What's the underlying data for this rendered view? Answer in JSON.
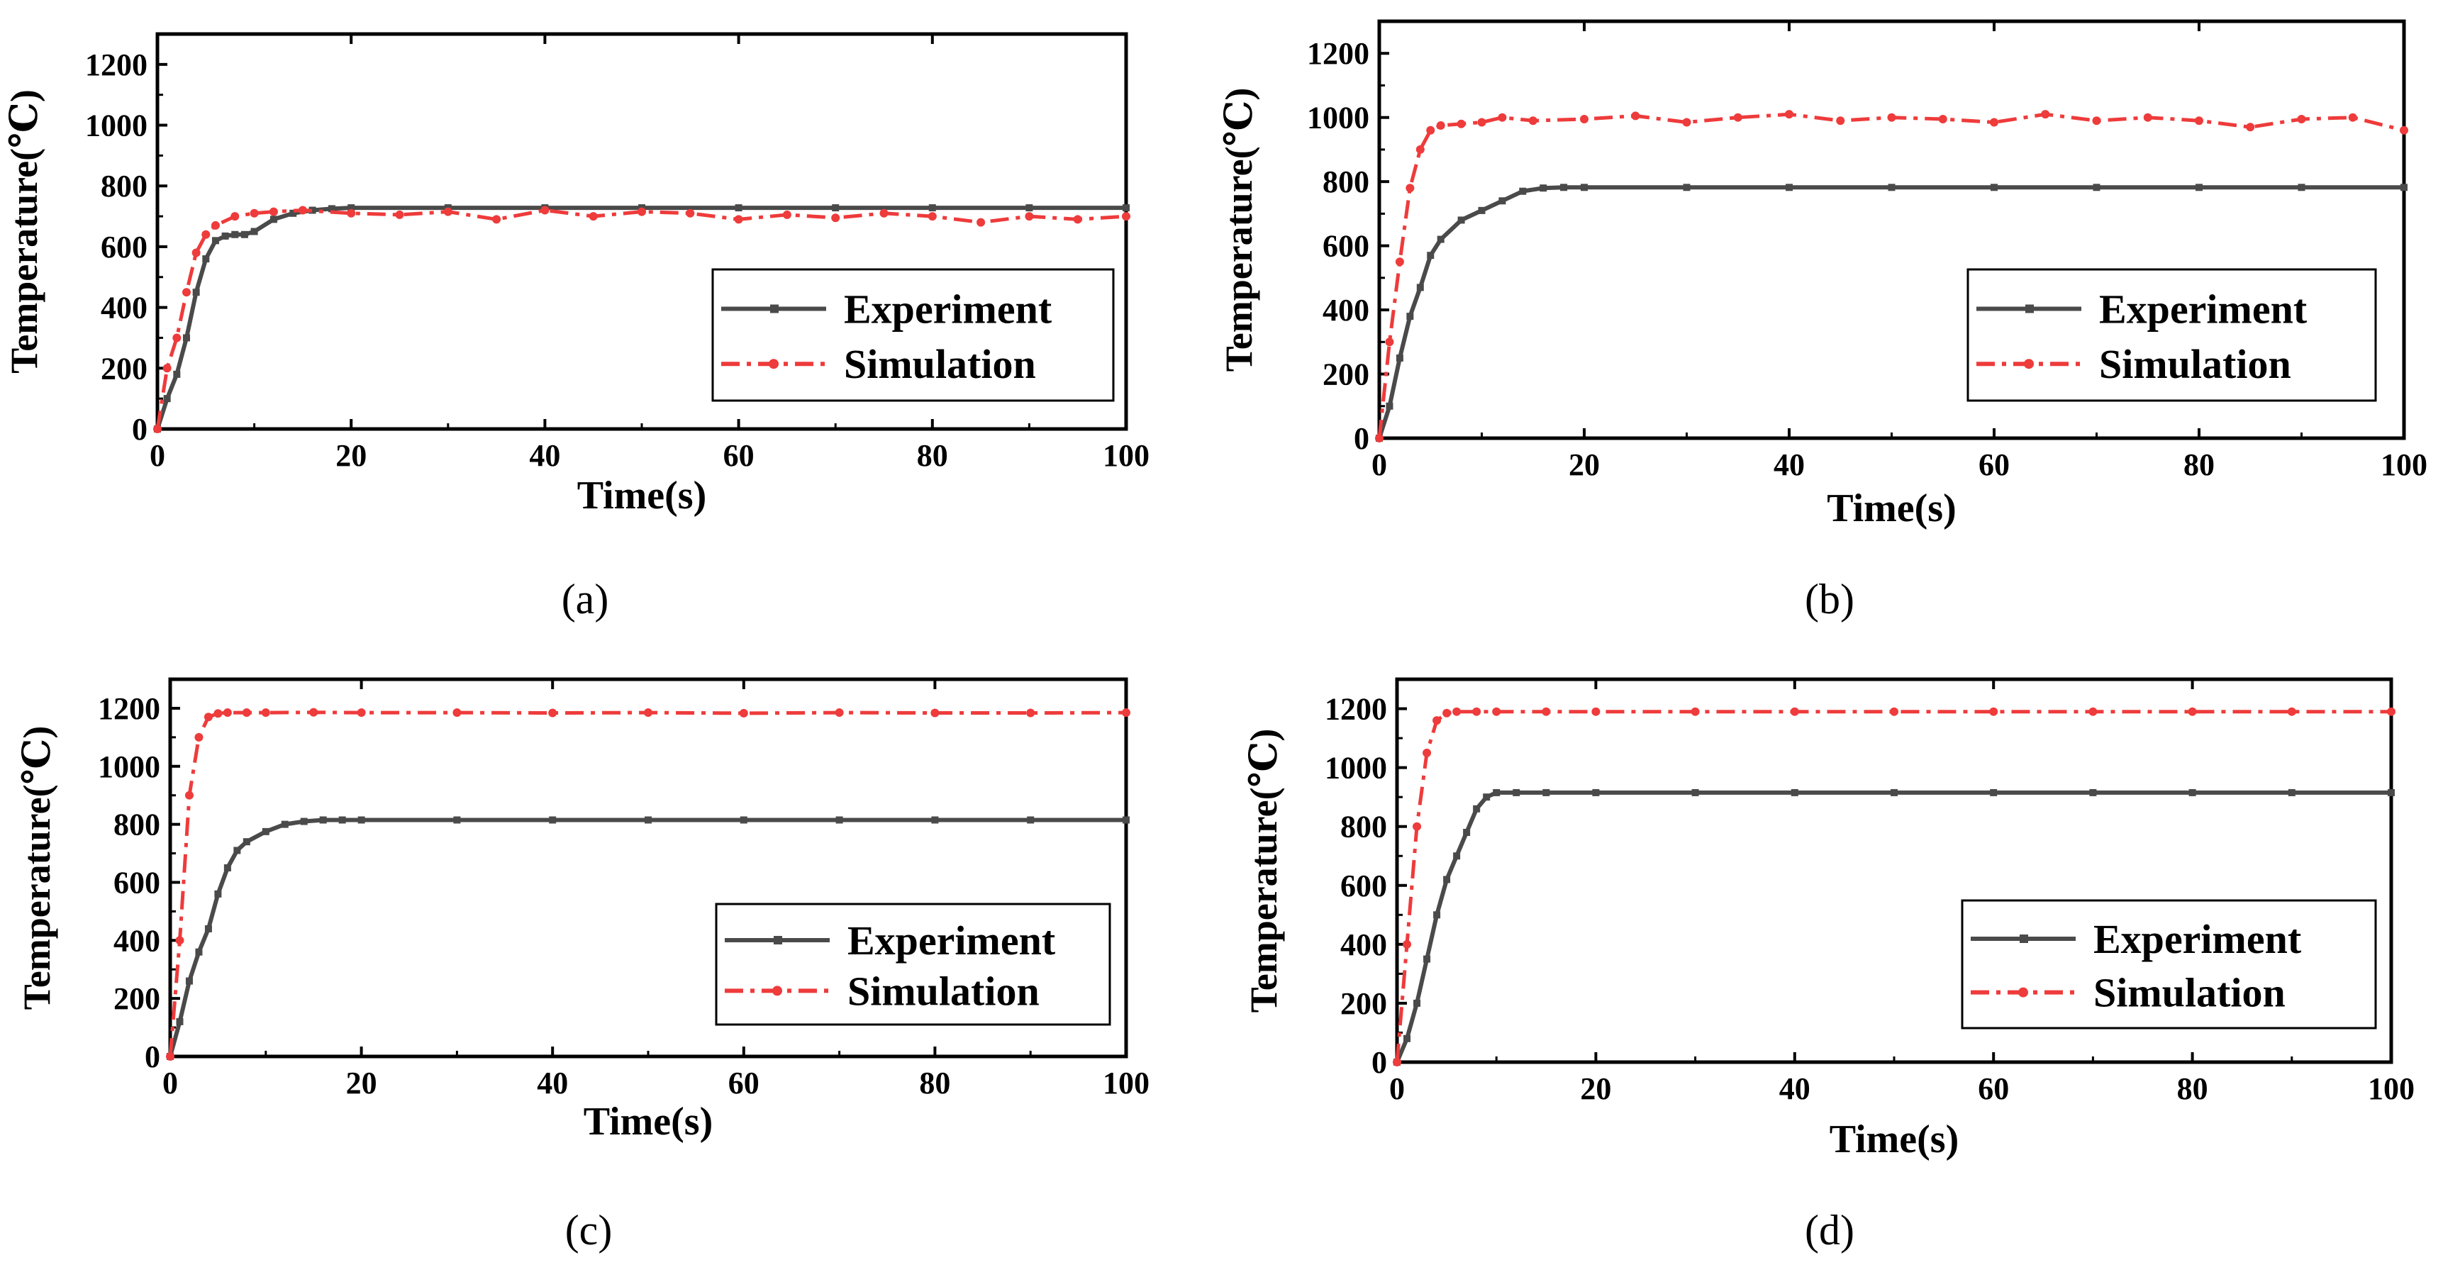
{
  "colors": {
    "experiment": "#4a4a4a",
    "simulation": "#ee3b3b",
    "axis": "#000000"
  },
  "chart_data": [
    {
      "panel": "(a)",
      "type": "line",
      "xlabel": "Time(s)",
      "ylabel": "Temperature(℃)",
      "xlim": [
        0,
        100
      ],
      "ylim": [
        0,
        1300
      ],
      "xticks": [
        0,
        20,
        40,
        60,
        80,
        100
      ],
      "yticks": [
        0,
        200,
        400,
        600,
        800,
        1000,
        1200
      ],
      "legend": {
        "position": "bottom-right",
        "entries": [
          "Experiment",
          "Simulation"
        ]
      },
      "series": [
        {
          "name": "Experiment",
          "style": "solid-square",
          "x": [
            0,
            1,
            2,
            3,
            4,
            5,
            6,
            7,
            8,
            9,
            10,
            12,
            14,
            16,
            18,
            20,
            30,
            40,
            50,
            60,
            70,
            80,
            90,
            100
          ],
          "y": [
            0,
            100,
            180,
            300,
            450,
            560,
            620,
            635,
            640,
            640,
            650,
            690,
            710,
            720,
            725,
            728,
            728,
            728,
            728,
            728,
            728,
            728,
            728,
            728
          ]
        },
        {
          "name": "Simulation",
          "style": "dashdot-circle",
          "x": [
            0,
            1,
            2,
            3,
            4,
            5,
            6,
            8,
            10,
            12,
            15,
            20,
            25,
            30,
            35,
            40,
            45,
            50,
            55,
            60,
            65,
            70,
            75,
            80,
            85,
            90,
            95,
            100
          ],
          "y": [
            0,
            200,
            300,
            450,
            580,
            640,
            670,
            700,
            710,
            715,
            720,
            710,
            705,
            715,
            690,
            720,
            700,
            715,
            710,
            690,
            705,
            695,
            710,
            700,
            680,
            700,
            690,
            700
          ]
        }
      ]
    },
    {
      "panel": "(b)",
      "type": "line",
      "xlabel": "Time(s)",
      "ylabel": "Temperature(℃)",
      "xlim": [
        0,
        100
      ],
      "ylim": [
        0,
        1300
      ],
      "xticks": [
        0,
        20,
        40,
        60,
        80,
        100
      ],
      "yticks": [
        0,
        200,
        400,
        600,
        800,
        1000,
        1200
      ],
      "legend": {
        "position": "bottom-right",
        "entries": [
          "Experiment",
          "Simulation"
        ]
      },
      "series": [
        {
          "name": "Experiment",
          "style": "solid-square",
          "x": [
            0,
            1,
            2,
            3,
            4,
            5,
            6,
            8,
            10,
            12,
            14,
            16,
            18,
            20,
            30,
            40,
            50,
            60,
            70,
            80,
            90,
            100
          ],
          "y": [
            0,
            100,
            250,
            380,
            470,
            570,
            620,
            680,
            710,
            740,
            770,
            780,
            782,
            782,
            782,
            782,
            782,
            782,
            782,
            782,
            782,
            782
          ]
        },
        {
          "name": "Simulation",
          "style": "dashdot-circle",
          "x": [
            0,
            1,
            2,
            3,
            4,
            5,
            6,
            8,
            10,
            12,
            15,
            20,
            25,
            30,
            35,
            40,
            45,
            50,
            55,
            60,
            65,
            70,
            75,
            80,
            85,
            90,
            95,
            100
          ],
          "y": [
            0,
            300,
            550,
            780,
            900,
            960,
            975,
            980,
            985,
            1000,
            990,
            995,
            1005,
            985,
            1000,
            1010,
            990,
            1000,
            995,
            985,
            1010,
            990,
            1000,
            990,
            970,
            995,
            1000,
            960
          ]
        }
      ]
    },
    {
      "panel": "(c)",
      "type": "line",
      "xlabel": "Time(s)",
      "ylabel": "Temperature(℃)",
      "xlim": [
        0,
        100
      ],
      "ylim": [
        0,
        1300
      ],
      "xticks": [
        0,
        20,
        40,
        60,
        80,
        100
      ],
      "yticks": [
        0,
        200,
        400,
        600,
        800,
        1000,
        1200
      ],
      "legend": {
        "position": "bottom-right",
        "entries": [
          "Experiment",
          "Simulation"
        ]
      },
      "series": [
        {
          "name": "Experiment",
          "style": "solid-square",
          "x": [
            0,
            1,
            2,
            3,
            4,
            5,
            6,
            7,
            8,
            10,
            12,
            14,
            16,
            18,
            20,
            30,
            40,
            50,
            60,
            70,
            80,
            90,
            100
          ],
          "y": [
            0,
            120,
            260,
            360,
            440,
            560,
            650,
            710,
            740,
            775,
            800,
            810,
            815,
            815,
            815,
            815,
            815,
            815,
            815,
            815,
            815,
            815,
            815
          ]
        },
        {
          "name": "Simulation",
          "style": "dashdot-circle",
          "x": [
            0,
            1,
            2,
            3,
            4,
            5,
            6,
            8,
            10,
            15,
            20,
            30,
            40,
            50,
            60,
            70,
            80,
            90,
            100
          ],
          "y": [
            0,
            400,
            900,
            1100,
            1170,
            1182,
            1185,
            1185,
            1185,
            1186,
            1185,
            1185,
            1184,
            1185,
            1183,
            1185,
            1184,
            1184,
            1185
          ]
        }
      ]
    },
    {
      "panel": "(d)",
      "type": "line",
      "xlabel": "Time(s)",
      "ylabel": "Temperature(℃)",
      "xlim": [
        0,
        100
      ],
      "ylim": [
        0,
        1300
      ],
      "xticks": [
        0,
        20,
        40,
        60,
        80,
        100
      ],
      "yticks": [
        0,
        200,
        400,
        600,
        800,
        1000,
        1200
      ],
      "legend": {
        "position": "bottom-right",
        "entries": [
          "Experiment",
          "Simulation"
        ]
      },
      "series": [
        {
          "name": "Experiment",
          "style": "solid-square",
          "x": [
            0,
            1,
            2,
            3,
            4,
            5,
            6,
            7,
            8,
            9,
            10,
            12,
            15,
            20,
            30,
            40,
            50,
            60,
            70,
            80,
            90,
            100
          ],
          "y": [
            0,
            80,
            200,
            350,
            500,
            620,
            700,
            780,
            860,
            900,
            915,
            915,
            915,
            915,
            915,
            915,
            915,
            915,
            915,
            915,
            915,
            915
          ]
        },
        {
          "name": "Simulation",
          "style": "dashdot-circle",
          "x": [
            0,
            1,
            2,
            3,
            4,
            5,
            6,
            8,
            10,
            15,
            20,
            30,
            40,
            50,
            60,
            70,
            80,
            90,
            100
          ],
          "y": [
            0,
            400,
            800,
            1050,
            1160,
            1185,
            1190,
            1190,
            1190,
            1190,
            1190,
            1190,
            1190,
            1190,
            1190,
            1190,
            1190,
            1190,
            1190
          ]
        }
      ]
    }
  ]
}
